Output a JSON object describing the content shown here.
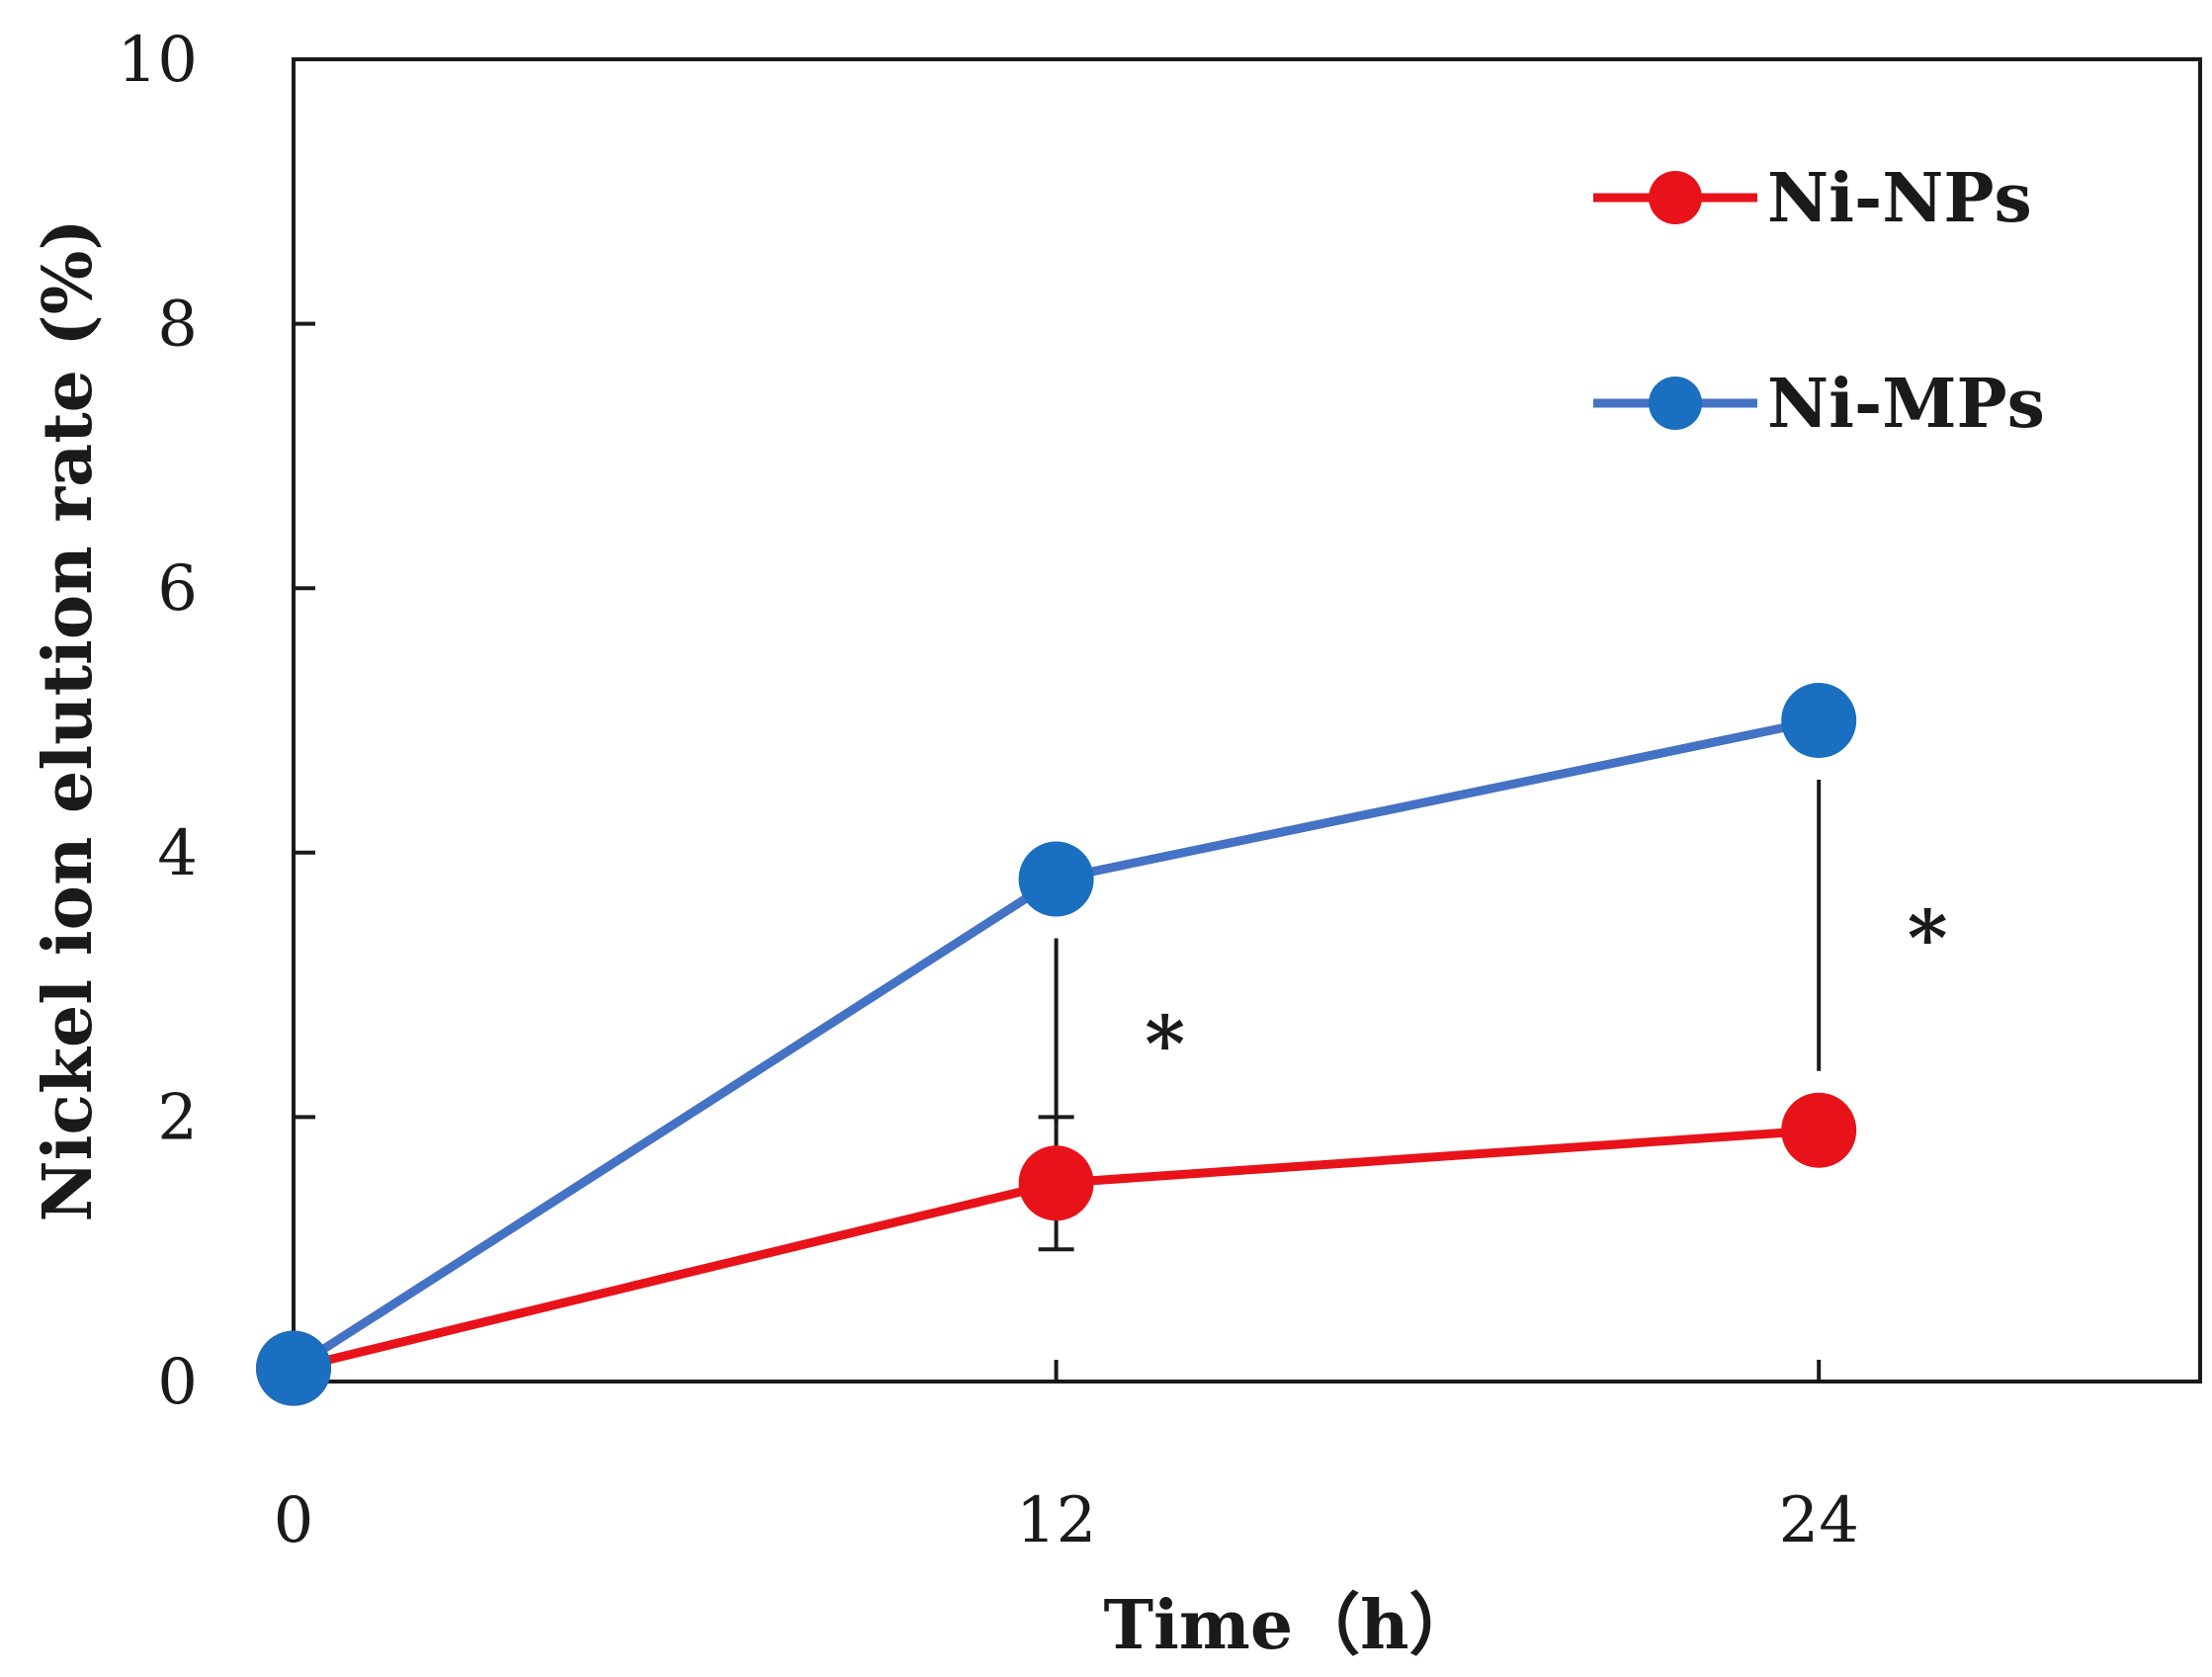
{
  "chart_data": {
    "type": "line",
    "title": "",
    "xlabel": "Time（h）",
    "ylabel": "Nickel ion elution rate (%)",
    "x": [
      0,
      12,
      24
    ],
    "xlim": [
      0,
      30
    ],
    "ylim": [
      0,
      10
    ],
    "yticks": [
      "0",
      "2",
      "4",
      "6",
      "8",
      "10"
    ],
    "xticks": [
      "0",
      "12",
      "24"
    ],
    "grid": false,
    "legend_position": "top-right",
    "series": [
      {
        "name": "Ni-NPs",
        "color": "#e8131a",
        "values": [
          0.1,
          1.5,
          1.9
        ],
        "error": [
          0,
          0.5,
          0
        ]
      },
      {
        "name": "Ni-MPs",
        "color": "#4472c4",
        "values": [
          0.1,
          3.8,
          5.0
        ],
        "error": [
          0,
          0,
          0
        ]
      }
    ],
    "marker_color_MPs": "#1a6fc0",
    "annotations": [
      {
        "text": "*",
        "x": 12,
        "from": 1.5,
        "to": 3.8
      },
      {
        "text": "*",
        "x": 24,
        "from": 1.9,
        "to": 5.0
      }
    ]
  }
}
